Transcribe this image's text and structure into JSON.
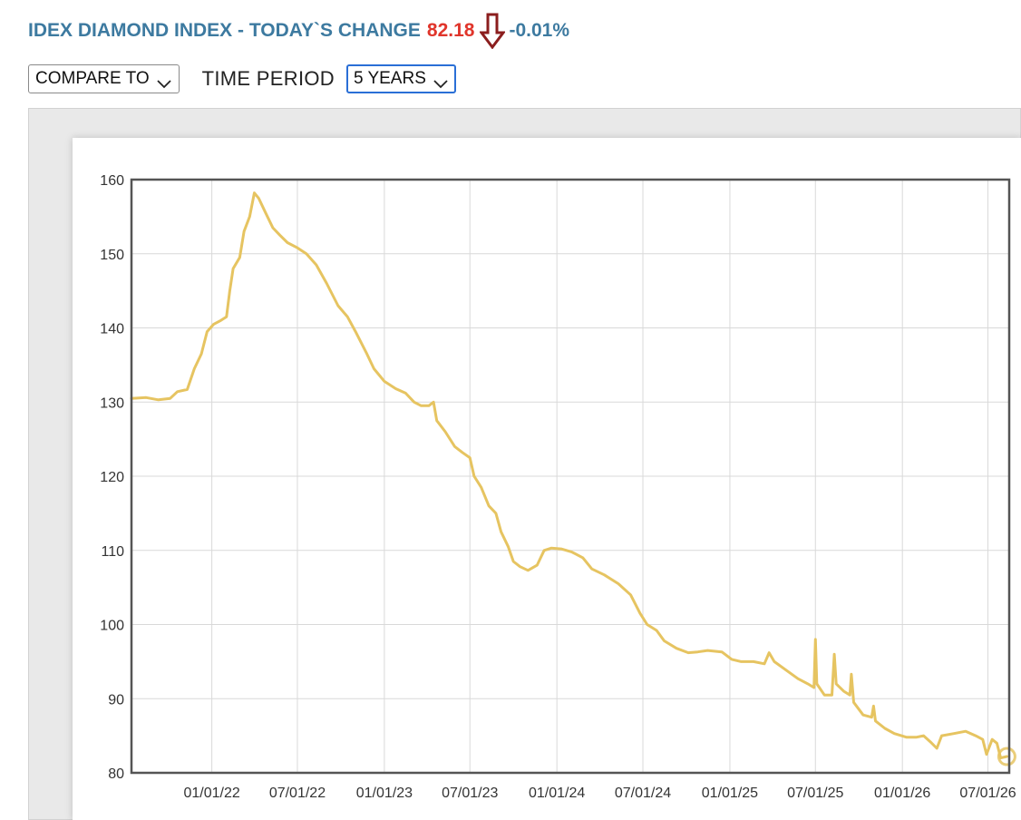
{
  "header": {
    "title": "IDEX DIAMOND INDEX - TODAY`S CHANGE",
    "value": "82.18",
    "change": "-0.01%",
    "direction_icon": "down-arrow-icon",
    "colors": {
      "title": "#3d7aa0",
      "value": "#e0352b",
      "arrow": "#8b1e1e"
    }
  },
  "controls": {
    "compare_label": "COMPARE TO",
    "period_label": "TIME PERIOD",
    "period_value": "5 YEARS"
  },
  "chart_data": {
    "type": "line",
    "title": "",
    "xlabel": "",
    "ylabel": "",
    "ylim": [
      80,
      160
    ],
    "yticks": [
      80,
      90,
      100,
      110,
      120,
      130,
      140,
      150,
      160
    ],
    "xticks": [
      "2022-01-01",
      "2022-07-01",
      "2023-01-01",
      "2023-07-01",
      "2024-01-01",
      "2024-07-01",
      "2025-01-01",
      "2025-07-01",
      "2026-01-01",
      "2026-07-01"
    ],
    "xtick_labels": [
      "01/01/22",
      "07/01/22",
      "01/01/23",
      "07/01/23",
      "01/01/24",
      "07/01/24",
      "01/01/25",
      "07/01/25",
      "01/01/26",
      "07/01/26"
    ],
    "xlim": [
      "2021-07-15",
      "2026-08-15"
    ],
    "grid": true,
    "line_color": "#e6c461",
    "series": [
      {
        "points": [
          [
            "2021-07-15",
            130.5
          ],
          [
            "2021-08-15",
            130.6
          ],
          [
            "2021-09-10",
            130.3
          ],
          [
            "2021-10-05",
            130.5
          ],
          [
            "2021-10-20",
            131.4
          ],
          [
            "2021-11-10",
            131.7
          ],
          [
            "2021-11-25",
            134.5
          ],
          [
            "2021-12-10",
            136.5
          ],
          [
            "2021-12-22",
            139.5
          ],
          [
            "2022-01-05",
            140.5
          ],
          [
            "2022-01-20",
            141.0
          ],
          [
            "2022-02-01",
            141.5
          ],
          [
            "2022-02-08",
            145.0
          ],
          [
            "2022-02-15",
            148.0
          ],
          [
            "2022-03-01",
            149.5
          ],
          [
            "2022-03-10",
            153.0
          ],
          [
            "2022-03-22",
            155.0
          ],
          [
            "2022-04-01",
            158.2
          ],
          [
            "2022-04-10",
            157.5
          ],
          [
            "2022-04-25",
            155.5
          ],
          [
            "2022-05-10",
            153.5
          ],
          [
            "2022-05-25",
            152.5
          ],
          [
            "2022-06-10",
            151.5
          ],
          [
            "2022-07-01",
            150.8
          ],
          [
            "2022-07-20",
            150.0
          ],
          [
            "2022-08-10",
            148.5
          ],
          [
            "2022-09-01",
            146.0
          ],
          [
            "2022-09-25",
            143.0
          ],
          [
            "2022-10-15",
            141.5
          ],
          [
            "2022-11-01",
            139.5
          ],
          [
            "2022-11-25",
            136.5
          ],
          [
            "2022-12-10",
            134.5
          ],
          [
            "2023-01-01",
            132.8
          ],
          [
            "2023-01-25",
            131.8
          ],
          [
            "2023-02-15",
            131.2
          ],
          [
            "2023-03-05",
            130.0
          ],
          [
            "2023-03-20",
            129.5
          ],
          [
            "2023-04-05",
            129.5
          ],
          [
            "2023-04-15",
            130.0
          ],
          [
            "2023-04-22",
            127.5
          ],
          [
            "2023-05-10",
            126.0
          ],
          [
            "2023-05-30",
            124.0
          ],
          [
            "2023-06-15",
            123.2
          ],
          [
            "2023-07-01",
            122.5
          ],
          [
            "2023-07-10",
            120.0
          ],
          [
            "2023-07-25",
            118.5
          ],
          [
            "2023-08-10",
            116.0
          ],
          [
            "2023-08-25",
            115.0
          ],
          [
            "2023-09-05",
            112.5
          ],
          [
            "2023-09-20",
            110.5
          ],
          [
            "2023-10-01",
            108.5
          ],
          [
            "2023-10-15",
            107.8
          ],
          [
            "2023-11-01",
            107.3
          ],
          [
            "2023-11-20",
            108.0
          ],
          [
            "2023-12-05",
            110.0
          ],
          [
            "2023-12-20",
            110.3
          ],
          [
            "2024-01-10",
            110.2
          ],
          [
            "2024-02-01",
            109.8
          ],
          [
            "2024-02-25",
            109.0
          ],
          [
            "2024-03-15",
            107.5
          ],
          [
            "2024-04-10",
            106.7
          ],
          [
            "2024-05-10",
            105.5
          ],
          [
            "2024-06-05",
            104.0
          ],
          [
            "2024-06-25",
            101.5
          ],
          [
            "2024-07-10",
            100.0
          ],
          [
            "2024-07-30",
            99.2
          ],
          [
            "2024-08-15",
            97.8
          ],
          [
            "2024-09-10",
            96.8
          ],
          [
            "2024-10-05",
            96.2
          ],
          [
            "2024-10-25",
            96.3
          ],
          [
            "2024-11-15",
            96.5
          ],
          [
            "2024-12-15",
            96.3
          ],
          [
            "2025-01-05",
            95.3
          ],
          [
            "2025-01-25",
            95.0
          ],
          [
            "2025-02-20",
            95.0
          ],
          [
            "2025-03-15",
            94.7
          ],
          [
            "2025-03-25",
            96.2
          ],
          [
            "2025-04-05",
            95.0
          ],
          [
            "2025-05-01",
            93.8
          ],
          [
            "2025-05-25",
            92.7
          ],
          [
            "2025-06-15",
            92.0
          ],
          [
            "2025-06-28",
            91.5
          ],
          [
            "2025-07-01",
            98.0
          ],
          [
            "2025-07-04",
            92.0
          ],
          [
            "2025-07-20",
            90.5
          ],
          [
            "2025-08-05",
            90.5
          ],
          [
            "2025-08-10",
            96.0
          ],
          [
            "2025-08-14",
            92.0
          ],
          [
            "2025-08-30",
            91.0
          ],
          [
            "2025-09-12",
            90.5
          ],
          [
            "2025-09-15",
            93.3
          ],
          [
            "2025-09-20",
            89.5
          ],
          [
            "2025-10-10",
            87.8
          ],
          [
            "2025-10-28",
            87.5
          ],
          [
            "2025-11-01",
            89.0
          ],
          [
            "2025-11-05",
            87.0
          ],
          [
            "2025-11-25",
            86.0
          ],
          [
            "2025-12-15",
            85.3
          ],
          [
            "2026-01-10",
            84.8
          ],
          [
            "2026-01-30",
            84.8
          ],
          [
            "2026-02-15",
            85.0
          ],
          [
            "2026-03-01",
            84.2
          ],
          [
            "2026-03-15",
            83.3
          ],
          [
            "2026-03-25",
            85.0
          ],
          [
            "2026-04-20",
            85.3
          ],
          [
            "2026-05-15",
            85.6
          ],
          [
            "2026-06-05",
            85.0
          ],
          [
            "2026-06-20",
            84.5
          ],
          [
            "2026-06-28",
            82.5
          ],
          [
            "2026-07-10",
            84.5
          ],
          [
            "2026-07-20",
            84.0
          ],
          [
            "2026-07-28",
            82.0
          ],
          [
            "2026-08-10",
            82.2
          ]
        ]
      }
    ]
  }
}
